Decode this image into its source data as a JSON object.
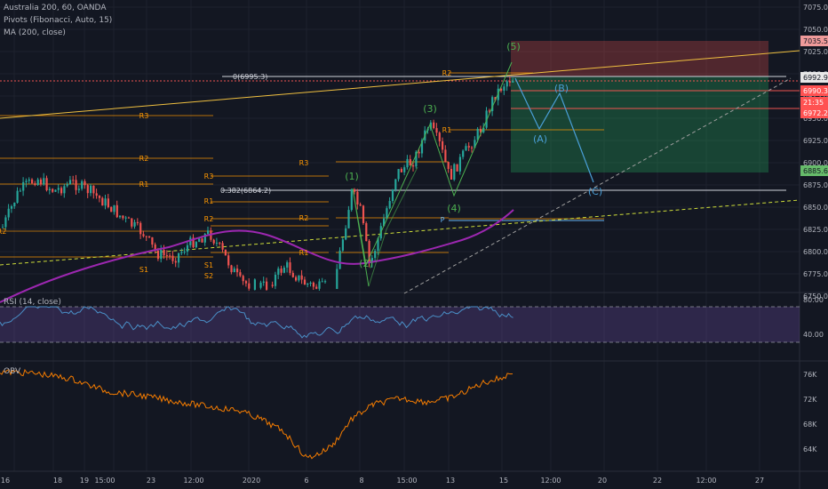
{
  "legend": {
    "symbol": "Australia 200, 60, OANDA",
    "pivots": "Pivots (Fibonacci, Auto, 15)",
    "ma": "MA (200, close)"
  },
  "price_axis": {
    "ticks": [
      "7075.0",
      "7050.0",
      "7025.0",
      "7000.0",
      "6975.0",
      "6950.0",
      "6925.0",
      "6900.0",
      "6875.0",
      "6850.0",
      "6825.0",
      "6800.0",
      "6775.0",
      "6750.0"
    ],
    "badges": [
      {
        "text": "7035.5",
        "bg": "#ef9a9a",
        "color": "#131722"
      },
      {
        "text": "6992.9",
        "bg": "#e8e8e8",
        "color": "#131722"
      },
      {
        "text": "6990.3",
        "bg": "#ff5252",
        "color": "#ffffff"
      },
      {
        "text": "21:35",
        "bg": "#ff5252",
        "color": "#ffffff"
      },
      {
        "text": "6972.2",
        "bg": "#ff5252",
        "color": "#ffffff"
      },
      {
        "text": "6885.6",
        "bg": "#66bb6a",
        "color": "#131722"
      }
    ]
  },
  "rsi": {
    "label": "RSI (14, close)",
    "ticks": [
      "80.00",
      "40.00"
    ]
  },
  "obv": {
    "label": "OBV",
    "ticks": [
      "76K",
      "72K",
      "68K",
      "64K"
    ]
  },
  "time_axis": [
    "16",
    "18",
    "19",
    "15:00",
    "23",
    "12:00",
    "2020",
    "6",
    "8",
    "15:00",
    "13",
    "15",
    "12:00",
    "20",
    "22",
    "12:00",
    "27"
  ],
  "fib_labels": {
    "level0": "0(6995.3)",
    "level382": "0.382(6864.2)"
  },
  "pivot_labels": [
    "R3",
    "R2",
    "R1",
    "S1",
    "R3",
    "R2",
    "R1",
    "S1",
    "S2",
    "R3",
    "R2",
    "R1",
    "R2",
    "R1",
    "P",
    "R2"
  ],
  "wave_labels": [
    "(1)",
    "(2)",
    "(3)",
    "(4)",
    "(5)",
    "(A)",
    "(B)",
    "(C)"
  ],
  "colors": {
    "background": "#131722",
    "grid": "#1e222d",
    "text": "#b2b5be",
    "bull": "#26a69a",
    "bear": "#ef5350",
    "ma": "#9c27b0",
    "pivot": "#ff9800",
    "rsi_line": "#2962ff",
    "rsi_band": "#7e57c2",
    "obv_line": "#f57c00",
    "wave_green": "#4caf50",
    "wave_blue": "#4a9fd8",
    "trend": "#f0c040"
  }
}
